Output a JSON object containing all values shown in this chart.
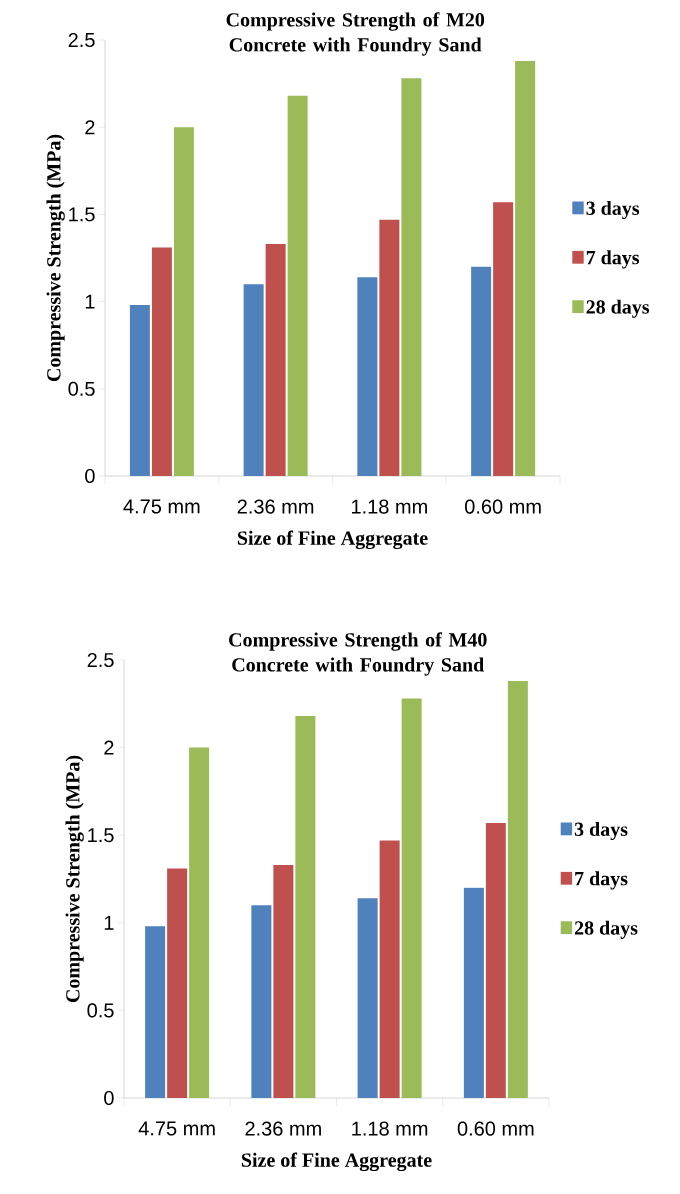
{
  "chart_data": [
    {
      "type": "bar",
      "title": "Compressive Strength of M20 Concrete with Foundry Sand",
      "xlabel": "Size of Fine Aggregate",
      "ylabel": "Compressive Strength (MPa)",
      "categories": [
        "4.75 mm",
        "2.36 mm",
        "1.18 mm",
        "0.60 mm"
      ],
      "series": [
        {
          "name": "3 days",
          "color": "#4f81bd",
          "values": [
            0.98,
            1.1,
            1.14,
            1.2
          ]
        },
        {
          "name": "7 days",
          "color": "#c0504d",
          "values": [
            1.31,
            1.33,
            1.47,
            1.57
          ]
        },
        {
          "name": "28 days",
          "color": "#9bbb59",
          "values": [
            2.0,
            2.18,
            2.28,
            2.38
          ]
        }
      ],
      "ylim": [
        0,
        2.5
      ],
      "yticks": [
        0,
        0.5,
        1,
        1.5,
        2,
        2.5
      ],
      "legend": "right",
      "grid": false
    },
    {
      "type": "bar",
      "title": "Compressive Strength of M40 Concrete with Foundry Sand",
      "xlabel": "Size of Fine Aggregate",
      "ylabel": "Compressive Strength (MPa)",
      "categories": [
        "4.75 mm",
        "2.36 mm",
        "1.18 mm",
        "0.60 mm"
      ],
      "series": [
        {
          "name": "3 days",
          "color": "#4f81bd",
          "values": [
            0.98,
            1.1,
            1.14,
            1.2
          ]
        },
        {
          "name": "7 days",
          "color": "#c0504d",
          "values": [
            1.31,
            1.33,
            1.47,
            1.57
          ]
        },
        {
          "name": "28 days",
          "color": "#9bbb59",
          "values": [
            2.0,
            2.18,
            2.28,
            2.38
          ]
        }
      ],
      "ylim": [
        0,
        2.5
      ],
      "yticks": [
        0,
        0.5,
        1,
        1.5,
        2,
        2.5
      ],
      "legend": "right",
      "grid": false
    }
  ]
}
